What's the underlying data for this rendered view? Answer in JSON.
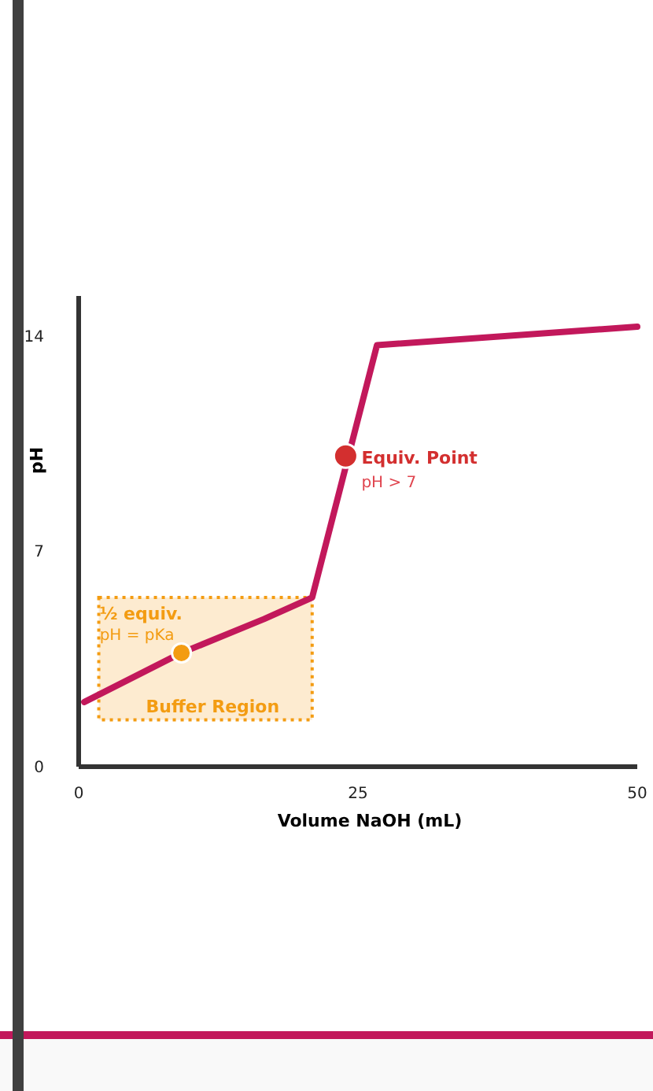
{
  "chart_data": {
    "type": "line",
    "xlabel": "Volume NaOH (mL)",
    "ylabel": "pH",
    "xlim": [
      0,
      50
    ],
    "ylim": [
      0,
      15.3
    ],
    "xticks": [
      0,
      25,
      50
    ],
    "yticks": [
      0,
      7,
      14
    ],
    "grid": false,
    "marker": "none",
    "line_style": "solid",
    "series": [
      {
        "color": "#c2185b",
        "x": [
          0.5,
          9.2,
          16.6,
          20.9,
          26.7,
          50
        ],
        "values": [
          2.1,
          3.7,
          4.8,
          5.5,
          13.7,
          14.3
        ]
      },
      {
        "type": "scatter",
        "color": "#f39c12",
        "marker": "circle",
        "x": [
          9.2
        ],
        "values": [
          3.7
        ]
      },
      {
        "type": "scatter",
        "color": "#d32f2f",
        "marker": "circle",
        "x": [
          23.9
        ],
        "values": [
          10.1
        ]
      }
    ],
    "bands": [
      {
        "axis": "x",
        "from": 1.8,
        "to": 20.9,
        "label": "Buffer Region",
        "color": "#f39c12"
      }
    ],
    "annotations": [
      "Equiv. Point",
      "pH > 7",
      "½ equiv.",
      "pH = pKa"
    ]
  }
}
